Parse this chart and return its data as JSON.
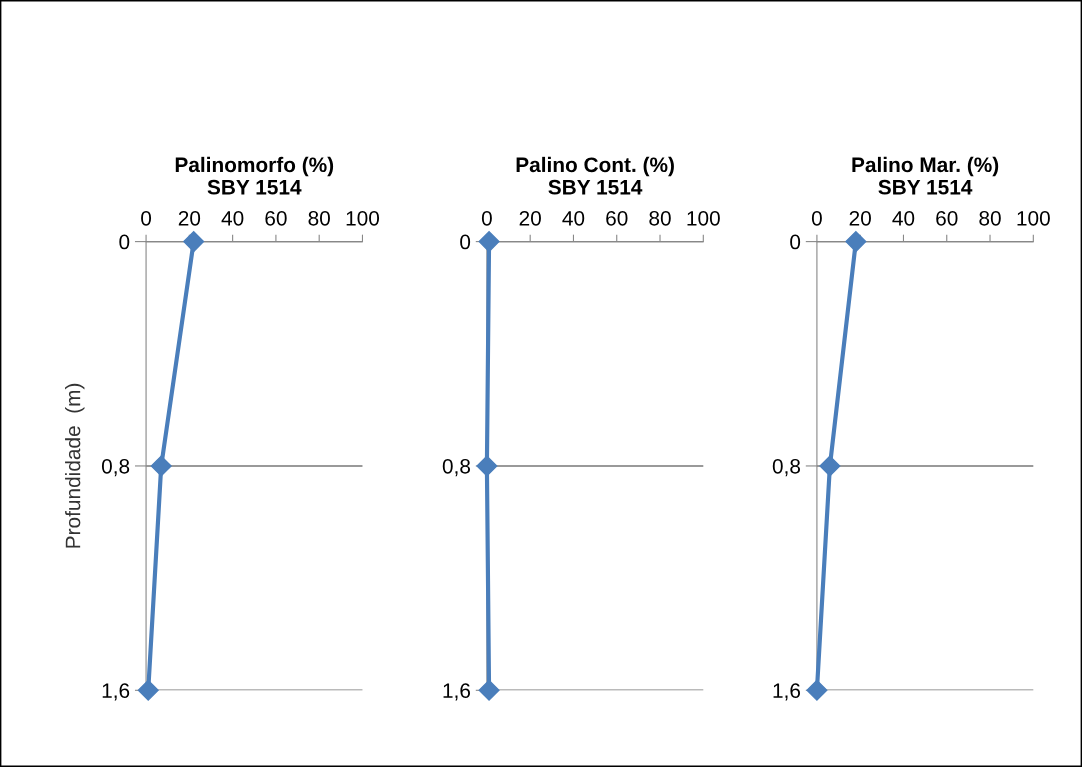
{
  "chart_data": [
    {
      "type": "line",
      "title": "Palinomorfo (%)\nSBY 1514",
      "ylabel": "Profundidade  (m)",
      "xlim": [
        0,
        100
      ],
      "xticks": [
        0,
        20,
        40,
        60,
        80,
        100
      ],
      "ylim": [
        1.6,
        0
      ],
      "yticks": [
        {
          "value": 0,
          "label": "0"
        },
        {
          "value": 0.8,
          "label": "0,8"
        },
        {
          "value": 1.6,
          "label": "1,6"
        }
      ],
      "grid": "y",
      "marker": "diamond",
      "line_style": "solid",
      "series": [
        {
          "color": "#4a7ebb",
          "x": [
            22,
            7,
            1
          ],
          "values": [
            0,
            0.8,
            1.6
          ]
        }
      ]
    },
    {
      "type": "line",
      "title": "Palino Cont. (%)\nSBY 1514",
      "xlim": [
        0,
        100
      ],
      "xticks": [
        0,
        20,
        40,
        60,
        80,
        100
      ],
      "ylim": [
        1.6,
        0
      ],
      "yticks": [
        {
          "value": 0,
          "label": "0"
        },
        {
          "value": 0.8,
          "label": "0,8"
        },
        {
          "value": 1.6,
          "label": "1,6"
        }
      ],
      "grid": "y",
      "marker": "diamond",
      "line_style": "solid",
      "series": [
        {
          "color": "#4a7ebb",
          "x": [
            1,
            0,
            1
          ],
          "values": [
            0,
            0.8,
            1.6
          ]
        }
      ]
    },
    {
      "type": "line",
      "title": "Palino Mar. (%)\nSBY 1514",
      "xlim": [
        0,
        100
      ],
      "xticks": [
        0,
        20,
        40,
        60,
        80,
        100
      ],
      "ylim": [
        1.6,
        0
      ],
      "yticks": [
        {
          "value": 0,
          "label": "0"
        },
        {
          "value": 0.8,
          "label": "0,8"
        },
        {
          "value": 1.6,
          "label": "1,6"
        }
      ],
      "grid": "y",
      "marker": "diamond",
      "line_style": "solid",
      "series": [
        {
          "color": "#4a7ebb",
          "x": [
            18,
            6,
            0
          ],
          "values": [
            0,
            0.8,
            1.6
          ]
        }
      ]
    }
  ]
}
